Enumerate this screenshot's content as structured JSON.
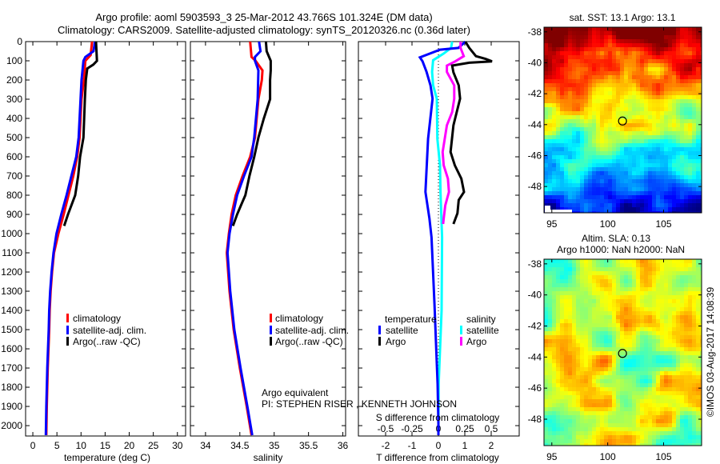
{
  "header": {
    "title_line1": "Argo profile: aoml 5903593_3 25-Mar-2012 43.766S 101.324E (DM data)",
    "title_line2": "Climatology: CARS2009. Satellite-adjusted climatology: synTS_20120326.nc (0.36d later)"
  },
  "credit": "©IMOS 03-Aug-2017 14:08:39",
  "pi_note": {
    "line1": "Argo equivalent",
    "line2": "PI: STEPHEN RISER , KENNETH JOHNSON"
  },
  "colors": {
    "climatology": "#ff0000",
    "satellite": "#0000ff",
    "argo": "#000000",
    "sal_satellite": "#00ffff",
    "sal_argo": "#ff00ff"
  },
  "chart_data": [
    {
      "type": "line",
      "id": "temperature",
      "xlabel": "temperature (deg C)",
      "ylabel": "depth",
      "xlim": [
        -1.5,
        31.7
      ],
      "ylim": [
        2054,
        0
      ],
      "xticks": [
        0,
        5,
        10,
        15,
        20,
        25,
        30
      ],
      "yticks": [
        0,
        100,
        200,
        300,
        400,
        500,
        600,
        700,
        800,
        900,
        1000,
        1100,
        1200,
        1300,
        1400,
        1500,
        1600,
        1700,
        1800,
        1900,
        2000
      ],
      "legend": [
        "climatology",
        "satellite-adj. clim.",
        "Argo(..raw -QC)"
      ],
      "series": [
        {
          "name": "climatology",
          "color": "#ff0000",
          "depth": [
            0,
            70,
            100,
            200,
            300,
            500,
            600,
            700,
            800,
            900,
            1000,
            1100,
            1200,
            1300,
            1400,
            1500,
            1700,
            1900,
            2050
          ],
          "values": [
            12.3,
            12.0,
            10.9,
            10.6,
            10.1,
            9.7,
            9.2,
            8.4,
            7.4,
            6.4,
            5.3,
            4.4,
            4.0,
            3.7,
            3.5,
            3.4,
            3.1,
            2.9,
            2.8
          ]
        },
        {
          "name": "satellite-adj. clim.",
          "color": "#0000ff",
          "depth": [
            0,
            50,
            80,
            100,
            200,
            300,
            500,
            600,
            700,
            800,
            900,
            1000,
            1100,
            1200,
            1300,
            1400,
            1500,
            1700,
            1900,
            2050
          ],
          "values": [
            12.9,
            12.6,
            10.9,
            10.5,
            10.1,
            9.9,
            9.5,
            9.0,
            8.0,
            7.0,
            5.9,
            4.9,
            4.3,
            3.9,
            3.6,
            3.4,
            3.3,
            3.0,
            2.8,
            2.7
          ]
        },
        {
          "name": "Argo(..raw -QC)",
          "color": "#000000",
          "depth": [
            0,
            100,
            120,
            140,
            200,
            300,
            500,
            600,
            700,
            800,
            900,
            960
          ],
          "values": [
            13.1,
            13.3,
            12.55,
            11.3,
            11.0,
            10.8,
            10.5,
            9.8,
            9.4,
            8.8,
            7.3,
            6.5
          ]
        }
      ]
    },
    {
      "type": "line",
      "id": "salinity",
      "xlabel": "salinity",
      "xlim": [
        33.78,
        36.04
      ],
      "ylim": [
        2054,
        0
      ],
      "xticks": [
        34,
        34.5,
        35,
        35.5,
        36
      ],
      "legend": [
        "climatology",
        "satellite-adj. clim.",
        "Argo(..raw -QC)"
      ],
      "series": [
        {
          "name": "climatology",
          "color": "#ff0000",
          "depth": [
            0,
            80,
            100,
            150,
            200,
            300,
            500,
            600,
            700,
            800,
            900,
            1000,
            1100,
            1300,
            1500,
            1700,
            1900,
            2050
          ],
          "values": [
            34.65,
            34.67,
            34.73,
            34.83,
            34.82,
            34.77,
            34.72,
            34.65,
            34.54,
            34.44,
            34.38,
            34.34,
            34.31,
            34.35,
            34.41,
            34.5,
            34.6,
            34.67
          ]
        },
        {
          "name": "satellite-adj. clim.",
          "color": "#0000ff",
          "depth": [
            0,
            50,
            80,
            100,
            150,
            300,
            500,
            600,
            700,
            800,
            900,
            1000,
            1100,
            1300,
            1500,
            1700,
            1900,
            2050
          ],
          "values": [
            34.78,
            34.8,
            34.72,
            34.72,
            34.77,
            34.76,
            34.71,
            34.67,
            34.56,
            34.46,
            34.4,
            34.35,
            34.32,
            34.36,
            34.42,
            34.51,
            34.61,
            34.68
          ]
        },
        {
          "name": "Argo(..raw -QC)",
          "color": "#000000",
          "depth": [
            0,
            50,
            100,
            150,
            200,
            300,
            400,
            500,
            600,
            700,
            800,
            850,
            900,
            960
          ],
          "values": [
            34.88,
            34.89,
            34.95,
            34.95,
            34.94,
            34.94,
            34.85,
            34.77,
            34.71,
            34.64,
            34.58,
            34.52,
            34.46,
            34.4
          ]
        }
      ]
    },
    {
      "type": "line",
      "id": "difference",
      "xlabel": "T difference from climatology",
      "x2label": "S difference from climatology",
      "xlim": [
        -3.03,
        3.06
      ],
      "xticks": [
        -2,
        -1,
        0,
        1,
        2
      ],
      "x2ticks": [
        -0.5,
        -0.25,
        0,
        0.25,
        0.5
      ],
      "x2ticklabels": [
        "-0.5",
        "-0.25",
        "0",
        "0.25",
        "0.5"
      ],
      "ylim": [
        2054,
        0
      ],
      "legend": {
        "temperature_title": "temperature",
        "salinity_title": "salinity",
        "satellite": "satellite",
        "argo": "Argo"
      },
      "series": [
        {
          "name": "T satellite",
          "axis": "T",
          "color": "#0000ff",
          "depth": [
            0,
            33,
            42,
            82,
            103,
            158,
            228,
            297,
            506,
            783,
            922,
            1019,
            1367,
            1783,
            1990,
            2050
          ],
          "values": [
            1.02,
            0.76,
            0.06,
            -0.7,
            -0.6,
            -0.45,
            -0.3,
            -0.22,
            -0.39,
            -0.49,
            -0.34,
            -0.26,
            -0.15,
            -0.03,
            0,
            0
          ]
        },
        {
          "name": "T Argo",
          "axis": "T",
          "color": "#000000",
          "depth": [
            0,
            33,
            76,
            90,
            103,
            110,
            125,
            160,
            228,
            297,
            436,
            575,
            644,
            714,
            783,
            825,
            894,
            950
          ],
          "values": [
            1.02,
            1.17,
            1.42,
            1.78,
            2.03,
            1.17,
            0.52,
            0.57,
            0.77,
            0.82,
            0.57,
            0.46,
            0.62,
            0.87,
            0.97,
            0.77,
            0.72,
            0.57
          ]
        },
        {
          "name": "S satellite",
          "axis": "S",
          "color": "#00ffff",
          "depth": [
            0,
            33,
            62,
            97,
            158,
            228,
            297,
            506,
            644,
            783,
            1019,
            1400,
            1783,
            2050
          ],
          "values": [
            0.13,
            0.12,
            0.05,
            -0.05,
            -0.06,
            -0.05,
            -0.015,
            -0.01,
            0.015,
            0.02,
            0.035,
            0.03,
            0.002,
            0
          ]
        },
        {
          "name": "S Argo",
          "axis": "S",
          "color": "#ff00ff",
          "depth": [
            0,
            33,
            76,
            103,
            125,
            158,
            228,
            297,
            367,
            436,
            575,
            644,
            714,
            783,
            853,
            922,
            950
          ],
          "values": [
            0.21,
            0.21,
            0.24,
            0.16,
            0.08,
            0.08,
            0.15,
            0.15,
            0.13,
            0.08,
            0.04,
            0.05,
            0.09,
            0.1,
            0.065,
            0.05,
            0.045
          ]
        }
      ]
    },
    {
      "type": "heatmap",
      "id": "sst_map",
      "title": "sat. SST: 13.1 Argo: 13.1",
      "xlim": [
        94.3,
        108.4
      ],
      "ylim": [
        -49.7,
        -37.7
      ],
      "xticks": [
        95,
        100,
        105
      ],
      "yticks": [
        -38,
        -40,
        -42,
        -44,
        -46,
        -48
      ],
      "marker": {
        "lon": 101.324,
        "lat": -43.766
      }
    },
    {
      "type": "heatmap",
      "id": "sla_map",
      "title_line1": "Altim. SLA: 0.13",
      "title_line2": "Argo h1000: NaN h2000: NaN",
      "xlim": [
        94.3,
        108.4
      ],
      "ylim": [
        -49.7,
        -37.7
      ],
      "xticks": [
        95,
        100,
        105
      ],
      "yticks": [
        -38,
        -40,
        -42,
        -44,
        -46,
        -48
      ],
      "marker": {
        "lon": 101.324,
        "lat": -43.766
      }
    }
  ]
}
